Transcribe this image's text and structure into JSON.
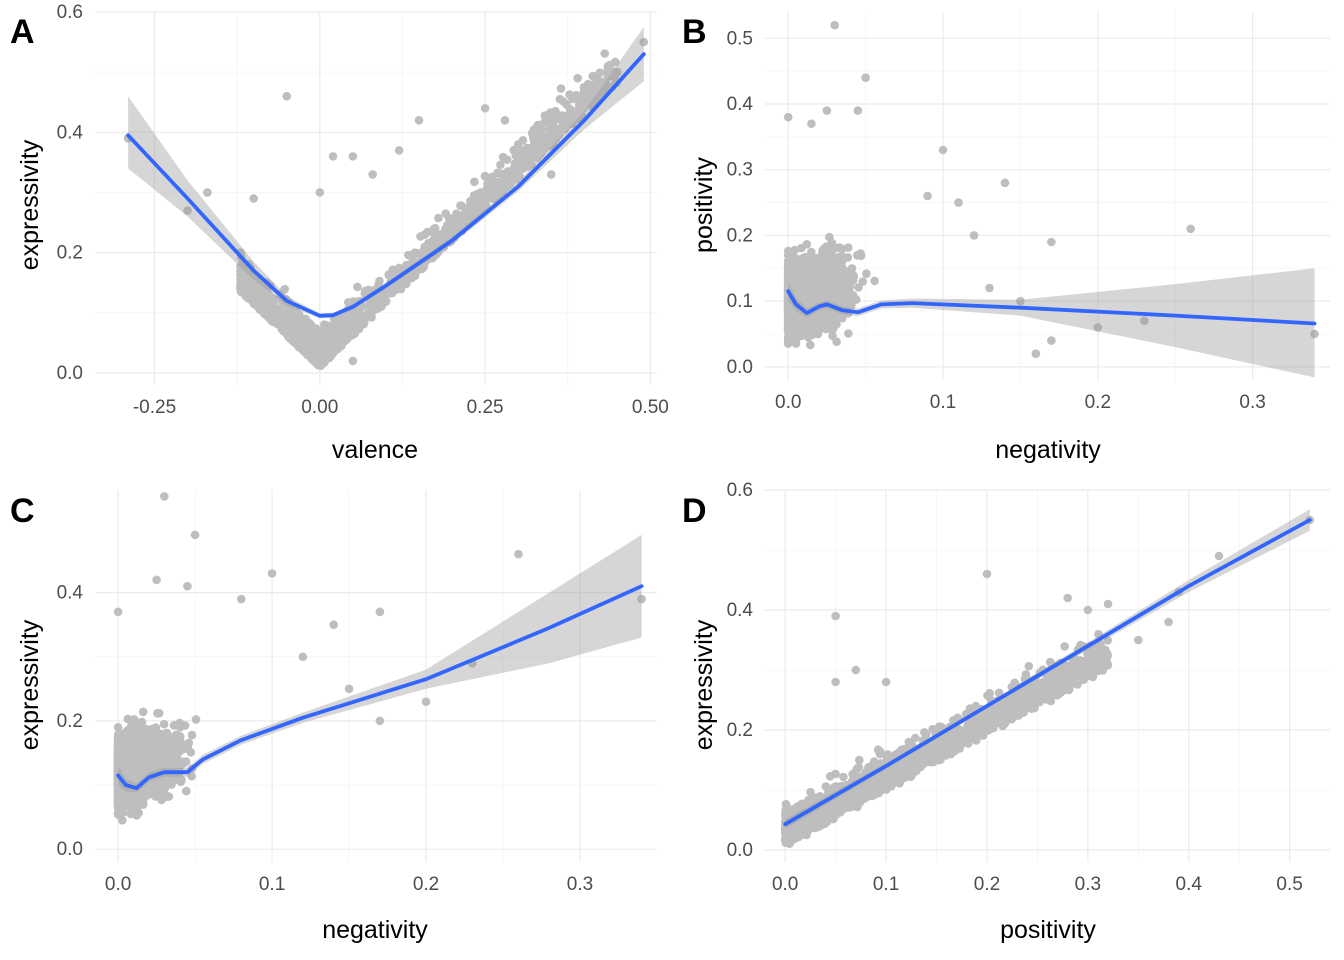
{
  "chart_data": [
    {
      "panel": "A",
      "type": "scatter",
      "xlabel": "valence",
      "ylabel": "expressivity",
      "xlim": [
        -0.34,
        0.51
      ],
      "ylim": [
        -0.02,
        0.6
      ],
      "xticks": [
        -0.25,
        0.0,
        0.25,
        0.5
      ],
      "xtick_labels": [
        "-0.25",
        "0.00",
        "0.25",
        "0.50"
      ],
      "yticks": [
        0.0,
        0.2,
        0.4,
        0.6
      ],
      "ytick_labels": [
        "0.0",
        "0.2",
        "0.4",
        "0.6"
      ],
      "points_outliers": [
        [
          -0.29,
          0.39
        ],
        [
          -0.2,
          0.27
        ],
        [
          -0.17,
          0.3
        ],
        [
          -0.1,
          0.29
        ],
        [
          -0.05,
          0.46
        ],
        [
          0.0,
          0.3
        ],
        [
          0.02,
          0.36
        ],
        [
          0.05,
          0.36
        ],
        [
          0.08,
          0.33
        ],
        [
          0.12,
          0.37
        ],
        [
          0.15,
          0.42
        ],
        [
          0.25,
          0.44
        ],
        [
          0.28,
          0.42
        ],
        [
          0.3,
          0.38
        ],
        [
          0.35,
          0.33
        ],
        [
          0.39,
          0.49
        ],
        [
          0.45,
          0.5
        ],
        [
          0.49,
          0.55
        ],
        [
          -0.12,
          0.2
        ],
        [
          -0.08,
          0.15
        ],
        [
          -0.06,
          0.1
        ],
        [
          0.05,
          0.02
        ]
      ],
      "cloud": {
        "kind": "v",
        "x_range": [
          -0.12,
          0.45
        ],
        "shape": "abs"
      },
      "smooth": {
        "x": [
          -0.29,
          -0.2,
          -0.1,
          -0.05,
          0.0,
          0.02,
          0.05,
          0.1,
          0.2,
          0.3,
          0.4,
          0.49
        ],
        "y": [
          0.395,
          0.29,
          0.17,
          0.12,
          0.095,
          0.096,
          0.11,
          0.145,
          0.22,
          0.31,
          0.42,
          0.53
        ],
        "se_lo": [
          0.34,
          0.26,
          0.155,
          0.112,
          0.091,
          0.092,
          0.106,
          0.14,
          0.214,
          0.302,
          0.405,
          0.485
        ],
        "se_hi": [
          0.46,
          0.32,
          0.185,
          0.128,
          0.099,
          0.1,
          0.114,
          0.15,
          0.226,
          0.318,
          0.435,
          0.575
        ]
      }
    },
    {
      "panel": "B",
      "type": "scatter",
      "xlabel": "negativity",
      "ylabel": "positivity",
      "xlim": [
        -0.015,
        0.35
      ],
      "ylim": [
        -0.02,
        0.54
      ],
      "xticks": [
        0.0,
        0.1,
        0.2,
        0.3
      ],
      "xtick_labels": [
        "0.0",
        "0.1",
        "0.2",
        "0.3"
      ],
      "yticks": [
        0.0,
        0.1,
        0.2,
        0.3,
        0.4,
        0.5
      ],
      "ytick_labels": [
        "0.0",
        "0.1",
        "0.2",
        "0.3",
        "0.4",
        "0.5"
      ],
      "points_outliers": [
        [
          0.03,
          0.52
        ],
        [
          0.05,
          0.44
        ],
        [
          0.045,
          0.39
        ],
        [
          0.025,
          0.39
        ],
        [
          0.015,
          0.37
        ],
        [
          0.0,
          0.38
        ],
        [
          0.1,
          0.33
        ],
        [
          0.14,
          0.28
        ],
        [
          0.17,
          0.19
        ],
        [
          0.26,
          0.21
        ],
        [
          0.2,
          0.06
        ],
        [
          0.23,
          0.07
        ],
        [
          0.17,
          0.04
        ],
        [
          0.16,
          0.02
        ],
        [
          0.34,
          0.05
        ],
        [
          0.13,
          0.12
        ],
        [
          0.15,
          0.1
        ],
        [
          0.11,
          0.25
        ],
        [
          0.09,
          0.26
        ],
        [
          0.12,
          0.2
        ]
      ],
      "cloud": {
        "kind": "blob",
        "x_range": [
          0.0,
          0.13
        ],
        "y_range": [
          0.0,
          0.3
        ]
      },
      "smooth": {
        "x": [
          0.0,
          0.005,
          0.012,
          0.02,
          0.025,
          0.035,
          0.045,
          0.06,
          0.08,
          0.15,
          0.25,
          0.34
        ],
        "y": [
          0.115,
          0.095,
          0.082,
          0.092,
          0.095,
          0.086,
          0.083,
          0.095,
          0.097,
          0.09,
          0.078,
          0.066
        ],
        "se_lo": [
          0.1,
          0.085,
          0.075,
          0.086,
          0.089,
          0.08,
          0.077,
          0.089,
          0.09,
          0.078,
          0.03,
          -0.016
        ],
        "se_hi": [
          0.13,
          0.105,
          0.089,
          0.098,
          0.101,
          0.092,
          0.089,
          0.101,
          0.104,
          0.102,
          0.126,
          0.15
        ]
      }
    },
    {
      "panel": "C",
      "type": "scatter",
      "xlabel": "negativity",
      "ylabel": "expressivity",
      "xlim": [
        -0.015,
        0.35
      ],
      "ylim": [
        -0.02,
        0.56
      ],
      "xticks": [
        0.0,
        0.1,
        0.2,
        0.3
      ],
      "xtick_labels": [
        "0.0",
        "0.1",
        "0.2",
        "0.3"
      ],
      "yticks": [
        0.0,
        0.2,
        0.4
      ],
      "ytick_labels": [
        "0.0",
        "0.2",
        "0.4"
      ],
      "points_outliers": [
        [
          0.03,
          0.55
        ],
        [
          0.05,
          0.49
        ],
        [
          0.025,
          0.42
        ],
        [
          0.045,
          0.41
        ],
        [
          0.0,
          0.37
        ],
        [
          0.1,
          0.43
        ],
        [
          0.17,
          0.37
        ],
        [
          0.26,
          0.46
        ],
        [
          0.34,
          0.39
        ],
        [
          0.23,
          0.29
        ],
        [
          0.2,
          0.23
        ],
        [
          0.17,
          0.2
        ],
        [
          0.14,
          0.35
        ],
        [
          0.12,
          0.3
        ],
        [
          0.15,
          0.25
        ],
        [
          0.08,
          0.39
        ]
      ],
      "cloud": {
        "kind": "blob",
        "x_range": [
          0.0,
          0.13
        ],
        "y_range": [
          0.02,
          0.32
        ]
      },
      "smooth": {
        "x": [
          0.0,
          0.005,
          0.012,
          0.02,
          0.03,
          0.045,
          0.055,
          0.08,
          0.12,
          0.2,
          0.28,
          0.34
        ],
        "y": [
          0.115,
          0.1,
          0.095,
          0.112,
          0.12,
          0.12,
          0.14,
          0.17,
          0.205,
          0.265,
          0.345,
          0.41
        ],
        "se_lo": [
          0.1,
          0.09,
          0.088,
          0.105,
          0.113,
          0.113,
          0.133,
          0.163,
          0.197,
          0.25,
          0.29,
          0.33
        ],
        "se_hi": [
          0.13,
          0.11,
          0.102,
          0.119,
          0.127,
          0.127,
          0.147,
          0.177,
          0.213,
          0.28,
          0.4,
          0.49
        ]
      }
    },
    {
      "panel": "D",
      "type": "scatter",
      "xlabel": "positivity",
      "ylabel": "expressivity",
      "xlim": [
        -0.02,
        0.54
      ],
      "ylim": [
        -0.02,
        0.6
      ],
      "xticks": [
        0.0,
        0.1,
        0.2,
        0.3,
        0.4,
        0.5
      ],
      "xtick_labels": [
        "0.0",
        "0.1",
        "0.2",
        "0.3",
        "0.4",
        "0.5"
      ],
      "yticks": [
        0.0,
        0.2,
        0.4,
        0.6
      ],
      "ytick_labels": [
        "0.0",
        "0.2",
        "0.4",
        "0.6"
      ],
      "points_outliers": [
        [
          0.05,
          0.39
        ],
        [
          0.2,
          0.46
        ],
        [
          0.28,
          0.42
        ],
        [
          0.3,
          0.4
        ],
        [
          0.32,
          0.41
        ],
        [
          0.39,
          0.43
        ],
        [
          0.43,
          0.49
        ],
        [
          0.52,
          0.55
        ],
        [
          0.38,
          0.38
        ],
        [
          0.35,
          0.35
        ],
        [
          0.1,
          0.28
        ],
        [
          0.05,
          0.28
        ],
        [
          0.07,
          0.3
        ]
      ],
      "cloud": {
        "kind": "wedge",
        "x_range": [
          0.0,
          0.32
        ]
      },
      "smooth": {
        "x": [
          0.0,
          0.1,
          0.2,
          0.3,
          0.4,
          0.52
        ],
        "y": [
          0.043,
          0.14,
          0.24,
          0.34,
          0.44,
          0.55
        ],
        "se_lo": [
          0.035,
          0.135,
          0.236,
          0.334,
          0.43,
          0.532
        ],
        "se_hi": [
          0.051,
          0.145,
          0.244,
          0.346,
          0.45,
          0.568
        ]
      }
    }
  ]
}
